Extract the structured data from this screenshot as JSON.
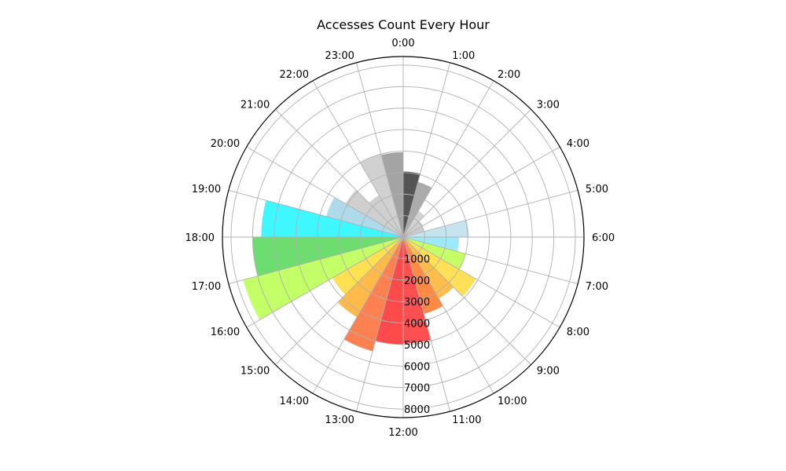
{
  "chart_data": {
    "type": "polar-bar",
    "title": "Accesses Count Every Hour",
    "categories": [
      "0:00",
      "1:00",
      "2:00",
      "3:00",
      "4:00",
      "5:00",
      "6:00",
      "7:00",
      "8:00",
      "9:00",
      "10:00",
      "11:00",
      "12:00",
      "13:00",
      "14:00",
      "15:00",
      "16:00",
      "17:00",
      "18:00",
      "19:00",
      "20:00",
      "21:00",
      "22:00",
      "23:00"
    ],
    "values": [
      3050,
      2650,
      1400,
      1050,
      1000,
      3050,
      2600,
      3000,
      3900,
      3300,
      3700,
      4950,
      5000,
      5500,
      4300,
      3800,
      7700,
      7000,
      6600,
      3700,
      3100,
      2250,
      4000,
      3950
    ],
    "colors": [
      "#545454",
      "#ababab",
      "#d3d3d3",
      "#cfcfcf",
      "#cccccc",
      "#c5e4f0",
      "#9ceaf8",
      "#c4ff66",
      "#ffe056",
      "#ffbd4c",
      "#ff8a44",
      "#ff5051",
      "#ff4a4c",
      "#ff8050",
      "#ffba4a",
      "#ffe050",
      "#c3ff66",
      "#6edd70",
      "#3ff7ff",
      "#aedaea",
      "#cfcfcf",
      "#cfcfcf",
      "#d1d1d1",
      "#a4a4a4"
    ],
    "radial_ticks": [
      1000,
      2000,
      3000,
      4000,
      5000,
      6000,
      7000,
      8000
    ],
    "rlim": [
      0,
      8400
    ],
    "direction": "clockwise",
    "zero_location": "top",
    "grid": true
  }
}
